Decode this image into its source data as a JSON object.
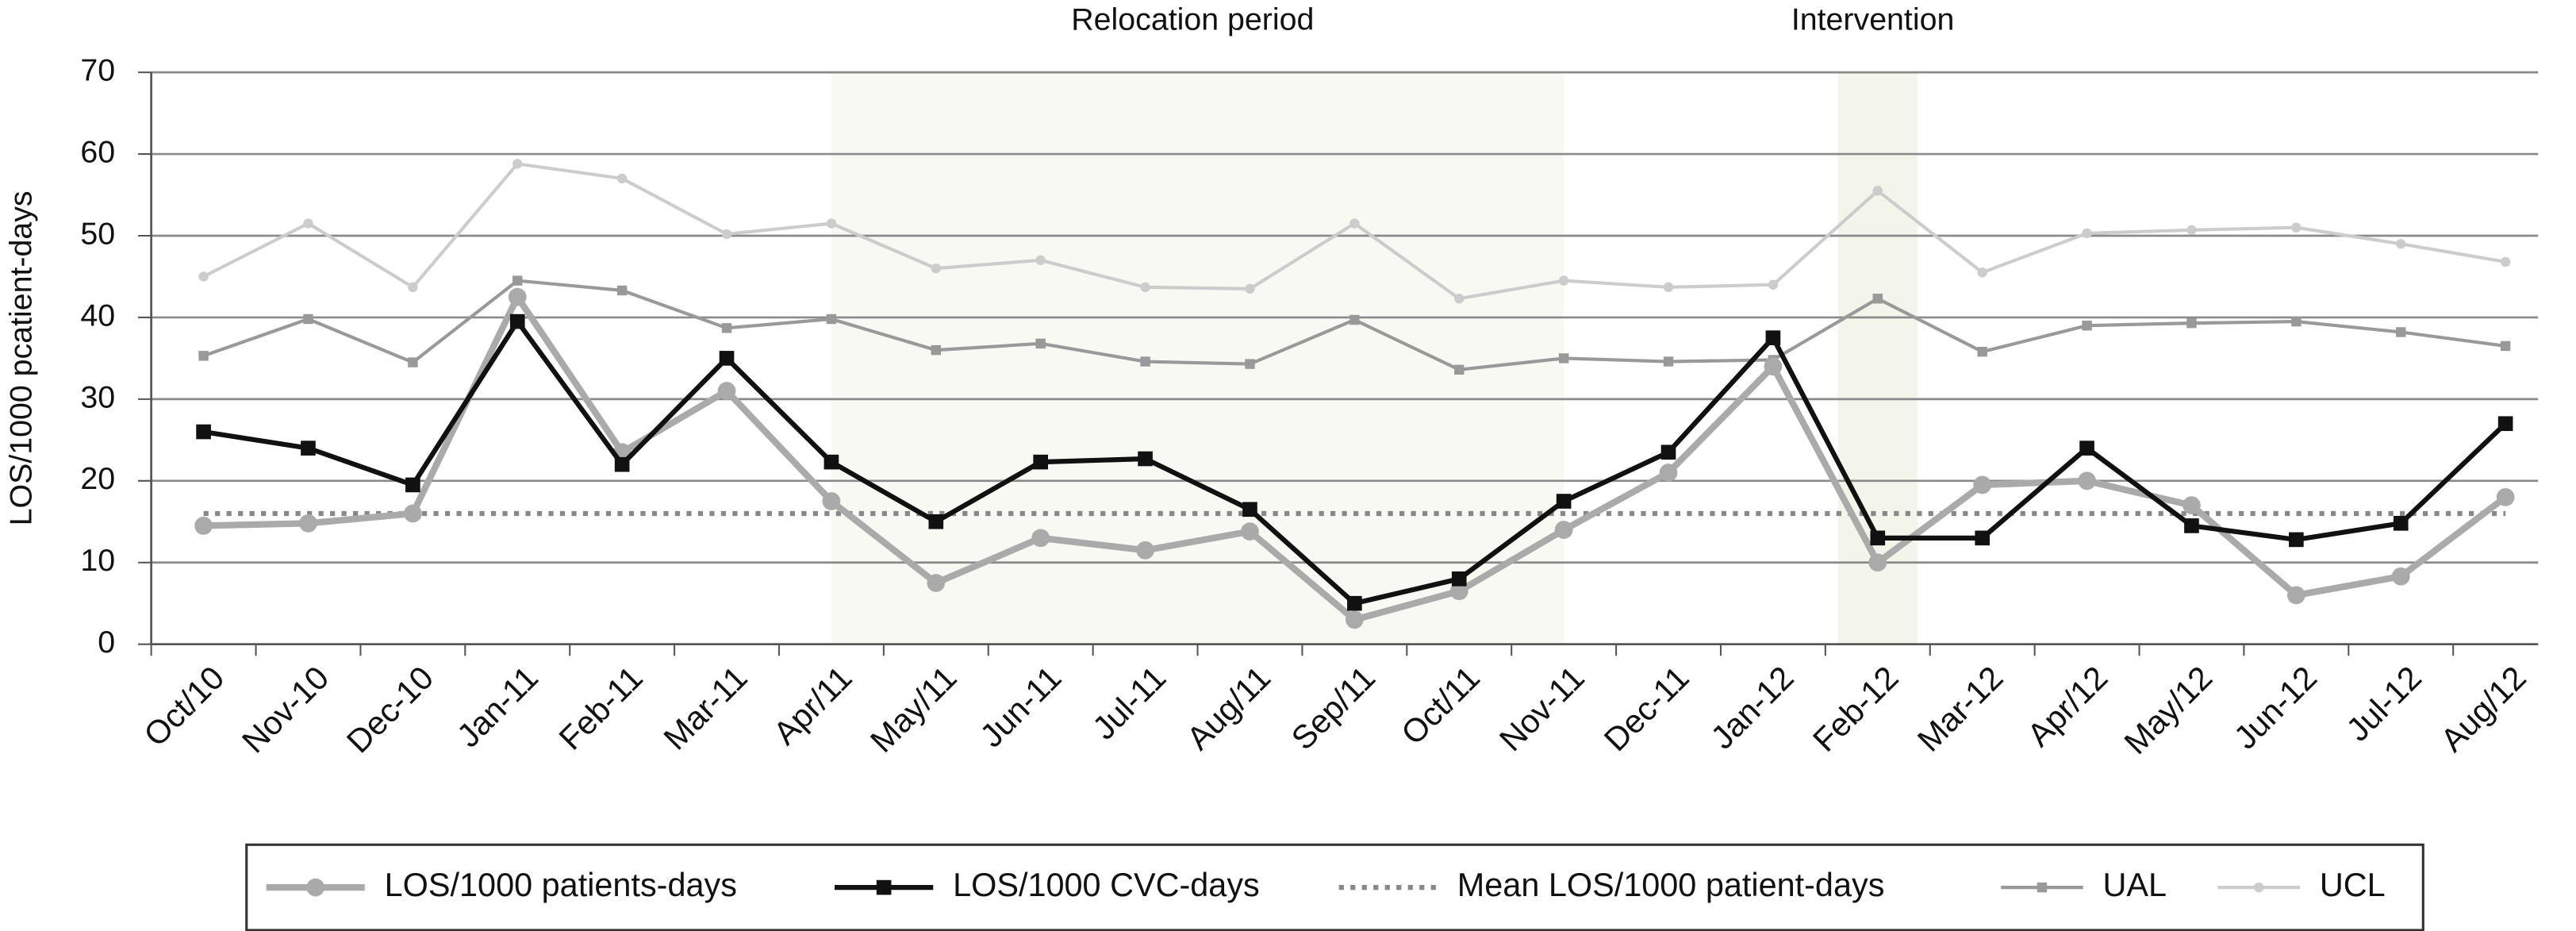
{
  "chart_data": {
    "type": "line",
    "ylabel": "LOS/1000 pcatient-days",
    "categories": [
      "Oct/10",
      "Nov-10",
      "Dec-10",
      "Jan-11",
      "Feb-11",
      "Mar-11",
      "Apr/11",
      "May/11",
      "Jun-11",
      "Jul-11",
      "Aug/11",
      "Sep/11",
      "Oct/11",
      "Nov-11",
      "Dec-11",
      "Jan-12",
      "Feb-12",
      "Mar-12",
      "Apr/12",
      "May/12",
      "Jun-12",
      "Jul-12",
      "Aug/12"
    ],
    "ylim": [
      0,
      70
    ],
    "yticks": [
      0,
      10,
      20,
      30,
      40,
      50,
      60,
      70
    ],
    "grid": true,
    "periods": [
      {
        "label": "Relocation period",
        "start": "Apr/11",
        "end": "Nov-11",
        "color": "#f8f9f2"
      },
      {
        "label": "Intervention",
        "start": "Feb-12",
        "end": "Feb-12",
        "color": "#f3f4ea"
      }
    ],
    "legend": "bottom",
    "series": [
      {
        "name": "LOS/1000 patients-days",
        "color": "#aaaaaa",
        "marker": "circle",
        "width": 4,
        "values": [
          14.5,
          14.8,
          16,
          42.5,
          23.5,
          31,
          17.5,
          7.5,
          13,
          11.5,
          13.8,
          3,
          6.5,
          14,
          21,
          34,
          10,
          19.5,
          20,
          17,
          6,
          8.3,
          18
        ]
      },
      {
        "name": "LOS/1000 CVC-days",
        "color": "#111111",
        "marker": "square",
        "width": 3,
        "values": [
          26,
          24,
          19.5,
          39.5,
          22,
          35,
          22.3,
          15,
          22.3,
          22.7,
          16.5,
          5,
          8,
          17.5,
          23.5,
          37.5,
          13,
          13,
          24,
          14.5,
          12.8,
          14.8,
          27
        ]
      },
      {
        "name": "Mean LOS/1000 patient-days",
        "color": "#888888",
        "marker": "none",
        "width": 3,
        "dash": "dotted",
        "values": [
          16,
          16,
          16,
          16,
          16,
          16,
          16,
          16,
          16,
          16,
          16,
          16,
          16,
          16,
          16,
          16,
          16,
          16,
          16,
          16,
          16,
          16,
          16
        ]
      },
      {
        "name": "UAL",
        "color": "#999999",
        "marker": "small-square",
        "width": 2,
        "values": [
          35.3,
          39.8,
          34.5,
          44.5,
          43.3,
          38.7,
          39.8,
          36,
          36.8,
          34.6,
          34.3,
          39.7,
          33.6,
          35,
          34.6,
          34.8,
          42.3,
          35.8,
          39,
          39.3,
          39.5,
          38.2,
          36.5
        ]
      },
      {
        "name": "UCL",
        "color": "#cccccc",
        "marker": "small-circle",
        "width": 2,
        "values": [
          45,
          51.5,
          43.7,
          58.8,
          57,
          50.2,
          51.5,
          46,
          47,
          43.7,
          43.5,
          51.5,
          42.3,
          44.5,
          43.7,
          44,
          55.5,
          45.5,
          50.3,
          50.7,
          51,
          49,
          46.8
        ]
      }
    ]
  }
}
